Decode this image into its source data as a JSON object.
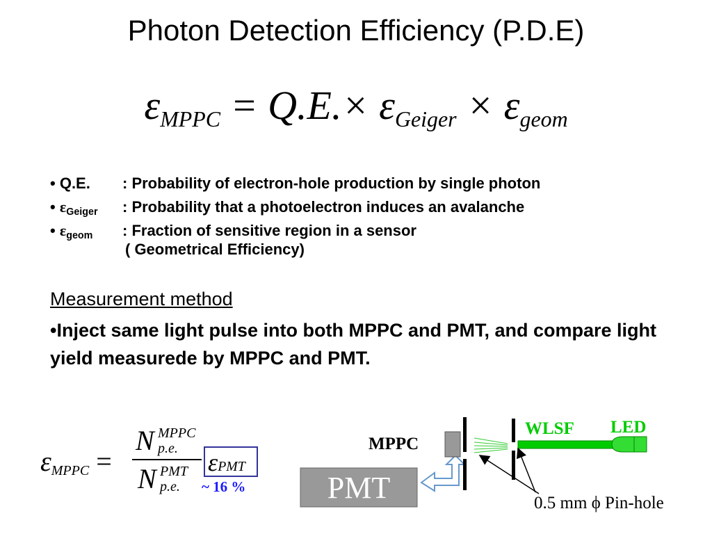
{
  "title": "Photon Detection Efficiency (P.D.E)",
  "formula": [
    [
      "ε",
      "MPPC"
    ],
    [
      "= Q.E.× ε",
      "Geiger"
    ],
    [
      "× ε",
      "geom"
    ]
  ],
  "bullet": "•",
  "definitions": [
    {
      "term": "Q.E.",
      "text": ": Probability of electron-hole production by single photon"
    },
    {
      "term": "ε",
      "sub": "Geiger",
      "text": ": Probability that a photoelectron induces an avalanche"
    },
    {
      "term": "ε",
      "sub": "geom",
      "text": ": Fraction of sensitive region in a sensor",
      "note": "( Geometrical Efficiency)"
    }
  ],
  "measurement": {
    "heading": "Measurement method",
    "text": "Inject same light pulse into both MPPC and PMT, and compare light yield measurede by MPPC and PMT."
  },
  "ratio": {
    "lhs": "ε",
    "lhs_sub": "MPPC",
    "equals": "=",
    "num": "N",
    "num_sup": "MPPC",
    "num_sub": "p.e.",
    "den": "N",
    "den_sup": "PMT",
    "den_sub": "p.e.",
    "box": "ε",
    "box_sub": "PMT",
    "result": "~ 16 %"
  },
  "diagram": {
    "mppc": "MPPC",
    "wlsf": "WLSF",
    "led": "LED",
    "pmt": "PMT",
    "pinhole": "0.5 mm ϕ Pin-hole"
  }
}
